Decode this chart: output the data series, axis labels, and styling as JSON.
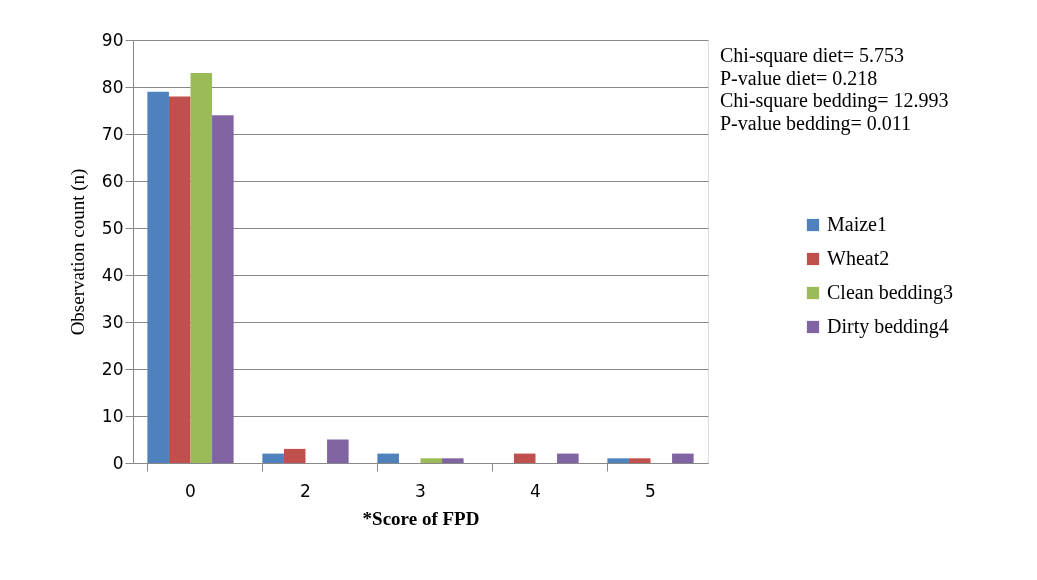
{
  "chart_data": {
    "type": "bar",
    "xlabel": "*Score of FPD",
    "ylabel": "Observation count (n)",
    "categories": [
      "0",
      "2",
      "3",
      "4",
      "5"
    ],
    "series": [
      {
        "name": "Maize1",
        "color": "#4f81bd",
        "values": [
          79,
          2,
          2,
          0,
          1
        ]
      },
      {
        "name": "Wheat2",
        "color": "#c0504d",
        "values": [
          78,
          3,
          0,
          2,
          1
        ]
      },
      {
        "name": "Clean bedding3",
        "color": "#9bbb59",
        "values": [
          83,
          0,
          1,
          0,
          0
        ]
      },
      {
        "name": "Dirty bedding4",
        "color": "#8064a2",
        "values": [
          74,
          5,
          1,
          2,
          2
        ]
      }
    ],
    "ylim": [
      0,
      90
    ],
    "yticks": [
      0,
      10,
      20,
      30,
      40,
      50,
      60,
      70,
      80,
      90
    ],
    "grid": "y",
    "legend": "right",
    "annotations": [
      "Chi-square diet= 5.753",
      "P-value diet= 0.218",
      "Chi-square bedding= 12.993",
      "P-value bedding= 0.011"
    ]
  }
}
